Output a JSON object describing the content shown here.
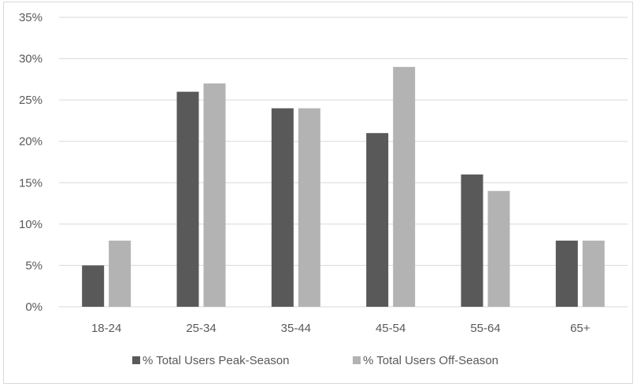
{
  "chart_data": {
    "type": "bar",
    "title": "",
    "xlabel": "",
    "ylabel": "",
    "categories": [
      "18-24",
      "25-34",
      "35-44",
      "45-54",
      "55-64",
      "65+"
    ],
    "series": [
      {
        "name": "% Total Users Peak-Season",
        "color": "#595959",
        "values": [
          5,
          26,
          24,
          21,
          16,
          8
        ]
      },
      {
        "name": "% Total Users Off-Season",
        "color": "#b3b3b3",
        "values": [
          8,
          27,
          24,
          29,
          14,
          8
        ]
      }
    ],
    "ylim": [
      0,
      35
    ],
    "yticks": [
      0,
      5,
      10,
      15,
      20,
      25,
      30,
      35
    ],
    "ytick_labels": [
      "0%",
      "5%",
      "10%",
      "15%",
      "20%",
      "25%",
      "30%",
      "35%"
    ],
    "grid": true,
    "gridline_color": "#d9d9d9",
    "legend_position": "bottom"
  }
}
